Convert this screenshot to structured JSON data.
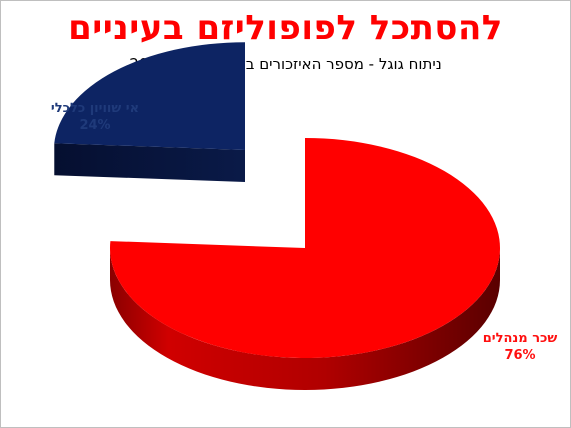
{
  "title": "להסתכל לפופוליזם בעיניים",
  "subtitle": "ניתוח גוגל - מספר האיזכורים בשנים 2000-2010",
  "chart_data": {
    "type": "pie",
    "style": "3d-exploded",
    "title": "להסתכל לפופוליזם בעיניים",
    "subtitle": "ניתוח גוגל - מספר האיזכורים בשנים 2000-2010",
    "slices": [
      {
        "label": "אי שוויון כלכלי",
        "value": 24,
        "value_label": "24%",
        "color": "#0d2463"
      },
      {
        "label": "שכר מנהלים",
        "value": 76,
        "value_label": "76%",
        "color": "#ff0000"
      }
    ]
  }
}
